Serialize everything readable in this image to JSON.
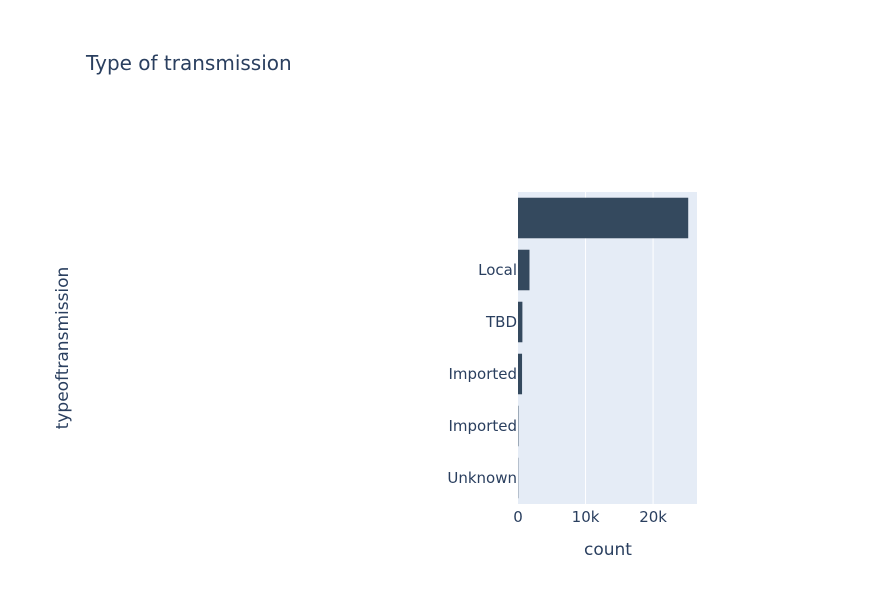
{
  "chart_data": {
    "type": "bar",
    "orientation": "horizontal",
    "title": "Type of transmission",
    "xlabel": "count",
    "ylabel": "typeoftransmission",
    "categories": [
      "",
      "Local",
      "TBD",
      "Imported",
      "Imported ",
      "Unknown"
    ],
    "values": [
      25200,
      1700,
      650,
      600,
      60,
      40
    ],
    "xlim": [
      0,
      26500
    ],
    "xticks": [
      {
        "value": 0,
        "label": "0"
      },
      {
        "value": 10000,
        "label": "10k"
      },
      {
        "value": 20000,
        "label": "20k"
      }
    ],
    "grid": true,
    "legend": "none"
  },
  "colors": {
    "bar": "#34495e",
    "plot_background": "#e5ecf6",
    "grid": "#ffffff",
    "text": "#2a3f5f"
  }
}
